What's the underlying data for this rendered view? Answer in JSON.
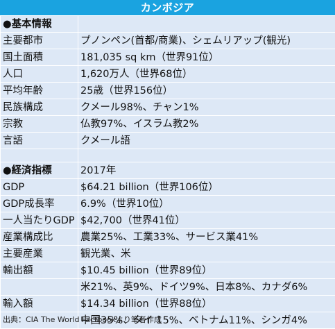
{
  "title": "カンボジア",
  "sections": {
    "basic": {
      "heading": "●基本情報",
      "rows": [
        {
          "label": "主要都市",
          "value": "プノンペン(首都/商業)、シェムリアップ(観光)"
        },
        {
          "label": "国土面積",
          "value": "181,035 sq km（世界91位）"
        },
        {
          "label": "人口",
          "value": "1,620万人（世界68位）"
        },
        {
          "label": "平均年齢",
          "value": "25歳（世界156位）"
        },
        {
          "label": "民族構成",
          "value": "クメール98%、チャン1%"
        },
        {
          "label": "宗教",
          "value": "仏教97%、イスラム教2%"
        },
        {
          "label": "言語",
          "value": "クメール語"
        }
      ]
    },
    "economy": {
      "heading": "●経済指標",
      "heading_value": "2017年",
      "rows": [
        {
          "label": "GDP",
          "value": "$64.21 billion（世界106位）"
        },
        {
          "label": "GDP成長率",
          "value": "6.9%（世界10位）"
        },
        {
          "label": "一人当たりGDP",
          "value": "$42,700（世界41位）"
        },
        {
          "label": "産業構成比",
          "value": "農業25%、工業33%、サービス業41%"
        },
        {
          "label": "主要産業",
          "value": "観光業、米"
        },
        {
          "label": "輸出額",
          "value": "$10.45 billion（世界89位）"
        },
        {
          "label": "",
          "value": "米21%、英9%、ドイツ9%、日本8%、カナダ6%"
        },
        {
          "label": "輸入額",
          "value": "$14.34 billion（世界88位）"
        },
        {
          "label": "",
          "value": "中国35%、タイ 15%、ベトナム11%、シンガ4%"
        }
      ]
    }
  },
  "source": "出典：CIA The World Factbookより筆者作成",
  "colors": {
    "title_bar": "#1aa3e0",
    "cell_background": "#dde8f6",
    "grid": "#ffffff"
  }
}
